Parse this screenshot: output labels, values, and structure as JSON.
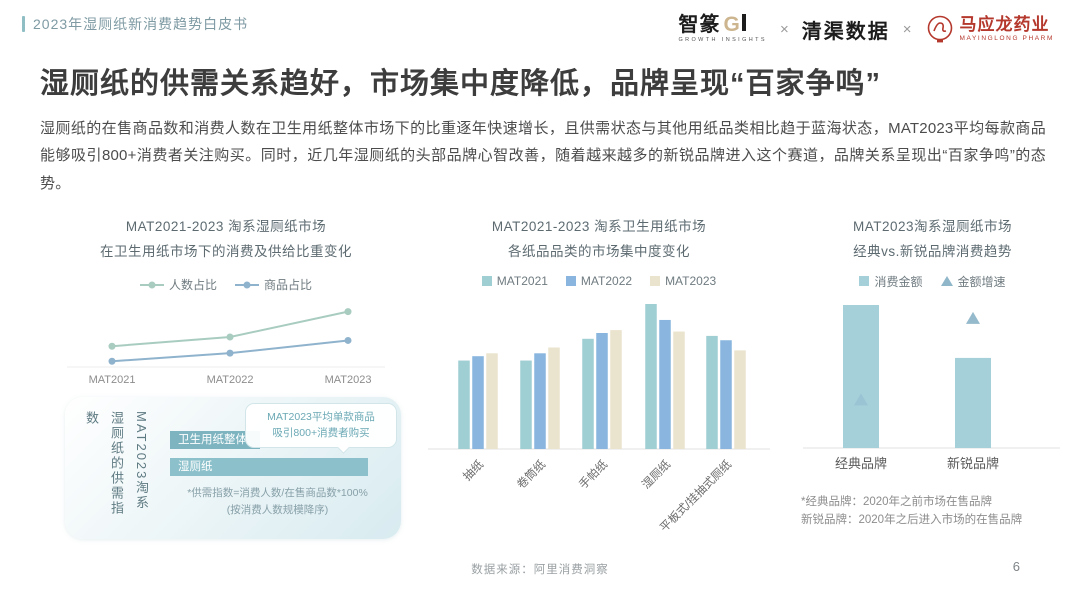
{
  "header": {
    "doc_title": "2023年湿厕纸新消费趋势白皮书",
    "logo_zhizhuan_cn": "智篆",
    "logo_zhizhuan_g": "G",
    "logo_zhizhuan_sub": "GROWTH  INSIGHTS",
    "logo_sep1": "×",
    "logo_qingqu": "清渠数据",
    "logo_sep2": "×",
    "logo_mayinglong_cn": "马应龙药业",
    "logo_mayinglong_en": "MAYINGLONG PHARM"
  },
  "title": "湿厕纸的供需关系趋好，市场集中度降低，品牌呈现“百家争鸣”",
  "body": "湿厕纸的在售商品数和消费人数在卫生用纸整体市场下的比重逐年快速增长，且供需状态与其他用纸品类相比趋于蓝海状态，MAT2023平均每款商品能够吸引800+消费者关注购买。同时，近几年湿厕纸的头部品牌心智改善，随着越来越多的新锐品牌进入这个赛道，品牌关系呈现出“百家争鸣”的态势。",
  "panels": {
    "p1": {
      "title1": "MAT2021-2023 淘系湿厕纸市场",
      "title2": "在卫生用纸市场下的消费及供给比重变化"
    },
    "p2": {
      "title1": "MAT2021-2023 淘系卫生用纸市场",
      "title2": "各纸品品类的市场集中度变化"
    },
    "p3": {
      "title1": "MAT2023淘系湿厕纸市场",
      "title2": "经典vs.新锐品牌消费趋势",
      "footnote1": "*经典品牌：2020年之前市场在售品牌",
      "footnote2": "新锐品牌：2020年之后进入市场的在售品牌"
    }
  },
  "supply_box": {
    "side_label_col1": "MAT2023淘系",
    "side_label_col2": "湿厕纸的供需指数",
    "callout_line1": "MAT2023平均单款商品",
    "callout_line2": "吸引800+消费者购买",
    "footnote1": "*供需指数=消费人数/在售商品数*100%",
    "footnote2": "(按消费人数规模降序)"
  },
  "footer": {
    "source": "数据来源：阿里消费洞察",
    "page_number": "6"
  },
  "colors": {
    "accent_teal": "#8fbfc4",
    "bar_teal": "#9fced3",
    "bar_blue": "#89b5df",
    "bar_cream": "#eae3cd",
    "bar_big_teal": "#a5d0da",
    "brand_red": "#b5382d",
    "title_text": "#3d3d3d"
  },
  "chart_data": [
    {
      "id": "supply_demand_trend",
      "type": "line",
      "title": "MAT2021-2023 淘系湿厕纸市场",
      "subtitle": "在卫生用纸市场下的消费及供给比重变化",
      "categories": [
        "MAT2021",
        "MAT2022",
        "MAT2023"
      ],
      "series": [
        {
          "name": "人数占比",
          "marker": "line-dot",
          "color": "#a9ccc0",
          "values": [
            0.9,
            1.3,
            2.4
          ]
        },
        {
          "name": "商品占比",
          "marker": "line-dot",
          "color": "#8fb3cd",
          "values": [
            0.25,
            0.6,
            1.15
          ]
        }
      ],
      "ylim": [
        0,
        2.6
      ],
      "grid": false,
      "legend_position": "top",
      "note": "y轴无刻度标注，数值为按像素高度估算的相对占比"
    },
    {
      "id": "market_concentration",
      "type": "bar",
      "title": "MAT2021-2023 淘系卫生用纸市场",
      "subtitle": "各纸品品类的市场集中度变化",
      "categories": [
        "抽纸",
        "卷筒纸",
        "手帕纸",
        "湿厕纸",
        "平板式/挂抽式厕纸"
      ],
      "series": [
        {
          "name": "MAT2021",
          "marker": "square",
          "color": "#9fced3",
          "values": [
            61,
            61,
            76,
            100,
            78
          ]
        },
        {
          "name": "MAT2022",
          "marker": "square",
          "color": "#89b5df",
          "values": [
            64,
            66,
            80,
            89,
            75
          ]
        },
        {
          "name": "MAT2023",
          "marker": "square",
          "color": "#eae3cd",
          "values": [
            66,
            70,
            82,
            81,
            68
          ]
        }
      ],
      "ylim": [
        0,
        110
      ],
      "grid": false,
      "legend_position": "top",
      "note": "y轴无刻度标注，数值为相对集中度估算(最高=100)"
    },
    {
      "id": "classic_vs_new_brand",
      "type": "bar",
      "title": "MAT2023淘系湿厕纸市场",
      "subtitle": "经典vs.新锐品牌消费趋势",
      "categories": [
        "经典品牌",
        "新锐品牌"
      ],
      "series": [
        {
          "name": "消费金额",
          "marker": "square",
          "type": "bar",
          "color": "#a5d0da",
          "values": [
            100,
            63
          ]
        },
        {
          "name": "金额增速",
          "marker": "triangle",
          "type": "point",
          "color": "#8fb6c9",
          "values": [
            34,
            91
          ]
        }
      ],
      "ylim": [
        0,
        110
      ],
      "grid": false,
      "legend_position": "top",
      "note": "y轴无刻度标注，数值为相对高度估算(经典品牌消费金额=100)"
    },
    {
      "id": "supply_demand_index",
      "type": "bar",
      "orientation": "horizontal",
      "title": "MAT2023淘系 湿厕纸的供需指数",
      "categories": [
        "卫生用纸整体",
        "湿厕纸"
      ],
      "values": [
        42,
        92
      ],
      "colors": [
        "#7db4c0",
        "#8cc1cb"
      ],
      "note": "条长为相对比例估算(%)"
    }
  ]
}
